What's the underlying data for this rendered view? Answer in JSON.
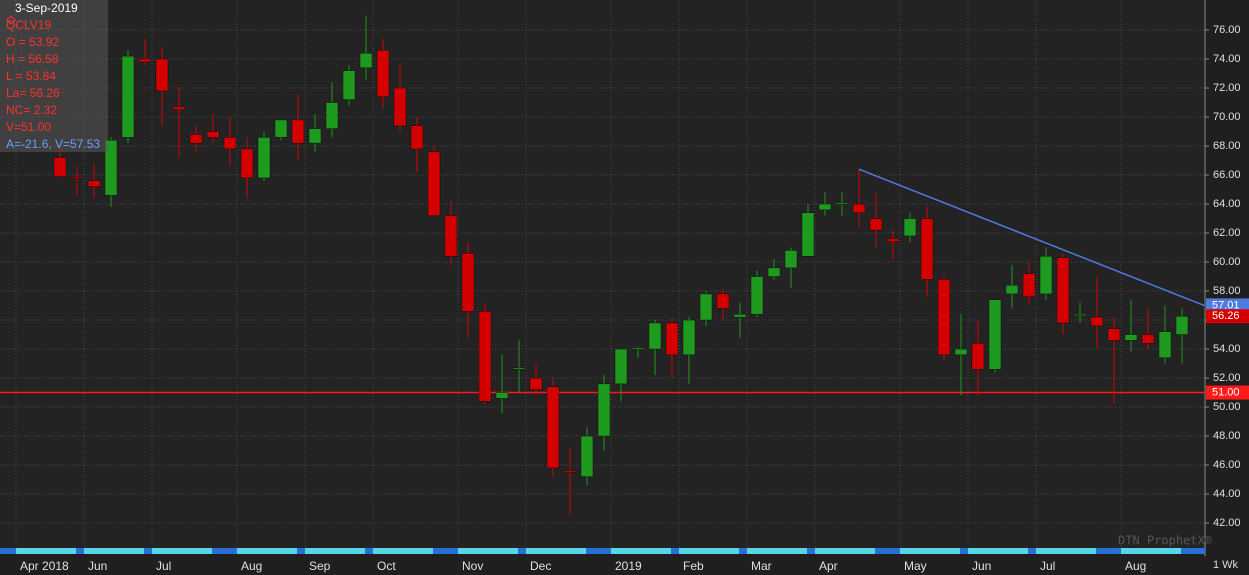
{
  "chart_data": {
    "type": "candlestick",
    "categories": [
      "Apr 2018",
      null,
      null,
      null,
      "Jun",
      null,
      null,
      null,
      "Jul",
      null,
      null,
      null,
      null,
      "Aug",
      null,
      null,
      null,
      "Sep",
      null,
      null,
      null,
      "Oct",
      null,
      null,
      null,
      null,
      "Nov",
      null,
      null,
      null,
      "Dec",
      null,
      null,
      null,
      null,
      "2019",
      null,
      null,
      null,
      "Feb",
      null,
      null,
      null,
      "Mar",
      null,
      null,
      null,
      "Apr",
      null,
      null,
      null,
      null,
      "May",
      null,
      null,
      null,
      "Jun",
      null,
      null,
      null,
      "Jul",
      null,
      null,
      null,
      null,
      "Aug",
      null,
      null,
      null
    ],
    "open": [
      null,
      null,
      67.2,
      65.9,
      65.6,
      64.6,
      68.6,
      74.0,
      74.0,
      70.7,
      68.8,
      69.0,
      68.6,
      67.8,
      65.8,
      68.6,
      69.8,
      68.2,
      69.2,
      71.2,
      73.4,
      74.6,
      72.0,
      69.4,
      67.6,
      63.2,
      60.6,
      56.6,
      50.6,
      52.6,
      52.0,
      51.4,
      45.6,
      45.2,
      48.0,
      51.6,
      54.0,
      54.0,
      55.8,
      53.6,
      56.0,
      57.8,
      56.2,
      56.4,
      59.0,
      59.6,
      60.4,
      63.6,
      64.0,
      64.0,
      63.0,
      61.6,
      61.8,
      63.0,
      58.8,
      53.6,
      54.4,
      52.6,
      57.8,
      59.2,
      57.8,
      60.3,
      56.3,
      56.2,
      55.4,
      54.6,
      55.0,
      53.4,
      55.0
    ],
    "high": [
      null,
      null,
      68.0,
      66.6,
      66.8,
      68.6,
      74.6,
      75.4,
      74.8,
      72.0,
      69.4,
      70.2,
      70.0,
      68.6,
      69.0,
      69.8,
      71.6,
      70.2,
      72.4,
      73.6,
      77.0,
      75.4,
      73.6,
      70.0,
      68.0,
      64.2,
      61.4,
      57.2,
      53.6,
      54.6,
      53.0,
      52.0,
      47.2,
      48.6,
      52.2,
      54.0,
      54.2,
      56.0,
      56.2,
      56.2,
      58.0,
      58.2,
      57.2,
      59.4,
      60.2,
      61.0,
      64.0,
      64.8,
      64.8,
      66.4,
      64.8,
      62.2,
      63.4,
      63.8,
      59.0,
      56.4,
      56.0,
      57.4,
      59.8,
      60.0,
      61.0,
      60.6,
      57.2,
      59.0,
      56.2,
      57.4,
      56.8,
      57.0,
      56.8
    ],
    "low": [
      null,
      null,
      65.8,
      64.6,
      64.4,
      63.8,
      68.2,
      73.6,
      69.4,
      67.2,
      67.6,
      68.2,
      66.6,
      64.4,
      65.6,
      68.4,
      67.0,
      67.6,
      68.6,
      70.8,
      72.6,
      70.6,
      69.0,
      66.2,
      63.2,
      59.8,
      54.8,
      50.2,
      49.6,
      51.0,
      50.8,
      45.2,
      42.6,
      44.6,
      47.0,
      50.4,
      53.4,
      52.2,
      52.0,
      51.6,
      55.6,
      56.0,
      54.8,
      56.2,
      58.8,
      58.2,
      60.4,
      63.2,
      63.2,
      62.4,
      61.0,
      60.2,
      61.4,
      57.6,
      53.2,
      50.8,
      50.8,
      52.4,
      56.8,
      57.0,
      57.4,
      55.0,
      55.8,
      54.0,
      50.2,
      53.8,
      54.0,
      53.0,
      53.0
    ],
    "close": [
      null,
      null,
      65.9,
      65.8,
      65.2,
      68.4,
      74.2,
      73.8,
      71.8,
      70.5,
      68.2,
      68.6,
      67.8,
      65.8,
      68.6,
      69.8,
      68.2,
      69.2,
      71.0,
      73.2,
      74.4,
      71.4,
      69.4,
      67.8,
      63.2,
      60.4,
      56.6,
      50.4,
      51.0,
      52.7,
      51.2,
      45.8,
      45.5,
      48.0,
      51.6,
      54.0,
      54.1,
      55.8,
      53.6,
      56.0,
      57.8,
      56.8,
      56.4,
      59.0,
      59.6,
      60.8,
      63.4,
      64.0,
      64.1,
      63.4,
      62.2,
      61.4,
      63.0,
      58.8,
      53.6,
      54.0,
      52.6,
      57.4,
      58.4,
      57.6,
      60.4,
      55.8,
      56.4,
      55.6,
      54.6,
      55.0,
      54.4,
      55.2,
      56.26
    ],
    "up_color": "#1e9a1e",
    "down_color": "#d40000",
    "ylim": [
      40.28,
      78.07
    ],
    "yticks": [
      {
        "value": 42,
        "label": "42.00"
      },
      {
        "value": 44,
        "label": "44.00"
      },
      {
        "value": 46,
        "label": "46.00"
      },
      {
        "value": 48,
        "label": "48.00"
      },
      {
        "value": 50,
        "label": "50.00"
      },
      {
        "value": 52,
        "label": "52.00"
      },
      {
        "value": 54,
        "label": "54.00"
      },
      {
        "value": 56,
        "label": "56.00"
      },
      {
        "value": 58,
        "label": "58.00"
      },
      {
        "value": 60,
        "label": "60.00"
      },
      {
        "value": 62,
        "label": "62.00"
      },
      {
        "value": 64,
        "label": "64.00"
      },
      {
        "value": 66,
        "label": "66.00"
      },
      {
        "value": 68,
        "label": "68.00"
      },
      {
        "value": 70,
        "label": "70.00"
      },
      {
        "value": 72,
        "label": "72.00"
      },
      {
        "value": 74,
        "label": "74.00"
      },
      {
        "value": 76,
        "label": "76.00"
      }
    ],
    "grid": true,
    "hline": {
      "value": 51,
      "label": "51.00",
      "color": "#ff1a1a"
    },
    "trendline": {
      "x": [
        49,
        69.3
      ],
      "y": [
        66.4,
        57.01
      ],
      "color": "#4f7ae0"
    },
    "info": [
      "3-Sep-2019",
      "QCLV19",
      "O = 53.92",
      "H = 56.58",
      "L = 53.84",
      "La= 56.26",
      "NC= 2.32",
      "V=51.00",
      "A=-21.6, V=57.53"
    ],
    "watermark": "DTN ProphetX®",
    "interval": "1 Wk"
  }
}
